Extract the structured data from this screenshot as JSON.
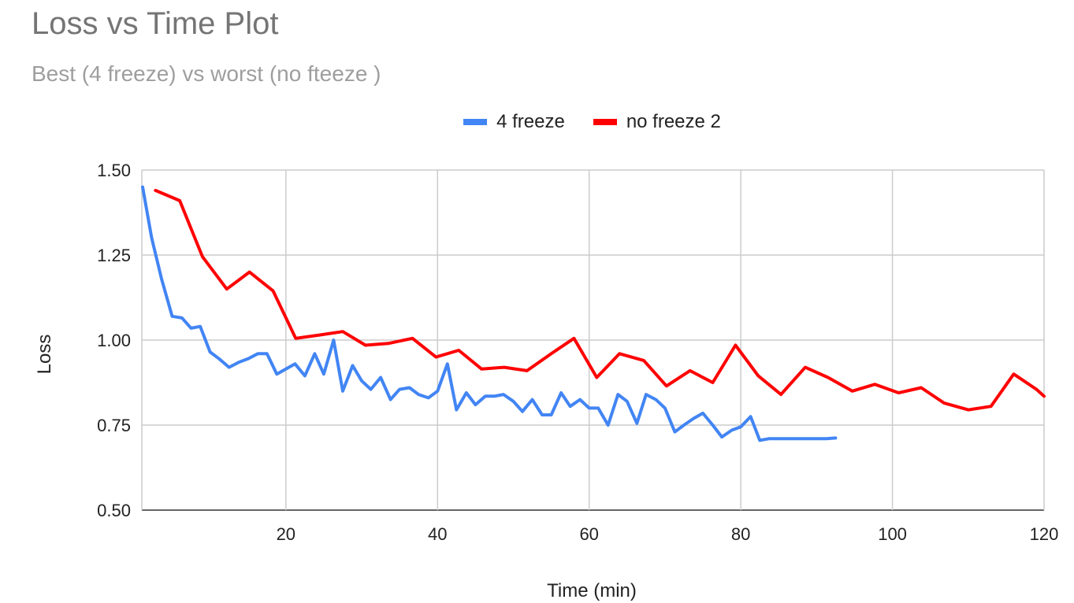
{
  "chart_data": {
    "type": "line",
    "title": "Loss vs Time Plot",
    "subtitle": "Best (4 freeze) vs worst (no fteeze )",
    "xlabel": "Time (min)",
    "ylabel": "Loss",
    "xlim": [
      1,
      120
    ],
    "ylim": [
      0.5,
      1.5
    ],
    "xticks": [
      20,
      40,
      60,
      80,
      100,
      120
    ],
    "yticks": [
      0.5,
      0.75,
      1.0,
      1.25,
      1.5
    ],
    "ytick_labels": [
      "0.50",
      "0.75",
      "1.00",
      "1.25",
      "1.50"
    ],
    "grid": true,
    "legend_position": "top-center",
    "series": [
      {
        "name": "4 freeze",
        "color": "#4285F4",
        "x": [
          1.1,
          2.3,
          3.6,
          5.0,
          6.3,
          7.5,
          8.7,
          10.0,
          11.2,
          12.5,
          13.8,
          15.0,
          16.3,
          17.5,
          18.8,
          20.0,
          21.2,
          22.5,
          23.8,
          25.0,
          26.3,
          27.5,
          28.8,
          30.0,
          31.2,
          32.5,
          33.8,
          35.0,
          36.3,
          37.5,
          38.8,
          40.0,
          41.3,
          42.5,
          43.8,
          45.0,
          46.3,
          47.5,
          48.7,
          50.0,
          51.2,
          52.5,
          53.8,
          55.0,
          56.3,
          57.5,
          58.8,
          60.0,
          61.2,
          62.5,
          63.8,
          65.0,
          66.3,
          67.5,
          68.8,
          70.0,
          71.3,
          72.5,
          73.8,
          75.0,
          76.3,
          77.5,
          78.8,
          80.0,
          81.3,
          82.5,
          83.7,
          85.0,
          86.3,
          87.5,
          88.7,
          90.0,
          91.3,
          92.5
        ],
        "y": [
          1.45,
          1.3,
          1.18,
          1.07,
          1.065,
          1.035,
          1.04,
          0.965,
          0.945,
          0.92,
          0.935,
          0.945,
          0.96,
          0.96,
          0.9,
          0.915,
          0.93,
          0.895,
          0.96,
          0.9,
          1.0,
          0.85,
          0.925,
          0.88,
          0.855,
          0.89,
          0.825,
          0.855,
          0.86,
          0.84,
          0.83,
          0.85,
          0.93,
          0.795,
          0.845,
          0.81,
          0.835,
          0.835,
          0.84,
          0.82,
          0.79,
          0.825,
          0.78,
          0.78,
          0.845,
          0.805,
          0.825,
          0.8,
          0.8,
          0.75,
          0.84,
          0.82,
          0.755,
          0.84,
          0.825,
          0.8,
          0.73,
          0.75,
          0.77,
          0.785,
          0.75,
          0.715,
          0.735,
          0.745,
          0.775,
          0.705,
          0.71,
          0.71,
          0.71,
          0.71,
          0.71,
          0.71,
          0.71,
          0.712
        ],
        "length": 74
      },
      {
        "name": "no freeze 2",
        "color": "#FF0000",
        "x": [
          2.8,
          6.0,
          9.0,
          12.2,
          15.2,
          18.3,
          21.3,
          24.5,
          27.5,
          30.5,
          33.5,
          36.7,
          39.8,
          42.8,
          45.8,
          48.8,
          51.8,
          55.0,
          58.0,
          61.0,
          64.0,
          67.2,
          70.2,
          73.3,
          76.3,
          79.3,
          82.3,
          85.3,
          88.5,
          91.5,
          94.7,
          97.7,
          100.8,
          103.8,
          106.8,
          110.0,
          113.0,
          116.0,
          119.0,
          122.0
        ],
        "y": [
          1.44,
          1.41,
          1.245,
          1.15,
          1.2,
          1.145,
          1.005,
          1.015,
          1.025,
          0.985,
          0.99,
          1.005,
          0.95,
          0.97,
          0.915,
          0.92,
          0.91,
          0.96,
          1.005,
          0.89,
          0.96,
          0.94,
          0.865,
          0.91,
          0.875,
          0.985,
          0.895,
          0.84,
          0.92,
          0.89,
          0.85,
          0.87,
          0.845,
          0.86,
          0.815,
          0.795,
          0.805,
          0.9,
          0.855,
          0.835
        ]
      }
    ]
  }
}
